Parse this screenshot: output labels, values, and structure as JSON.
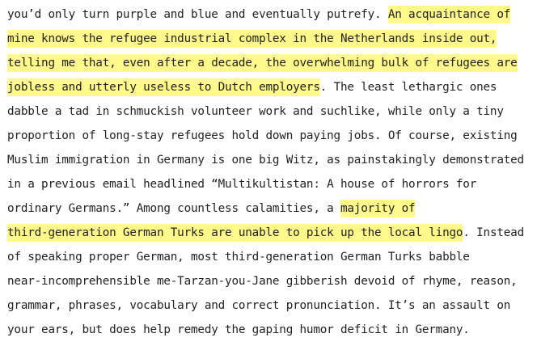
{
  "document": {
    "highlight_color": "#fff88a",
    "lines": [
      {
        "a": "you’d only turn purple and blue and eventually putrefy. ",
        "h": "An acquaintance of",
        "b": ""
      },
      {
        "a": "",
        "h": "mine knows the refugee industrial complex in the Netherlands inside out,",
        "b": ""
      },
      {
        "a": "",
        "h": "telling me that, even after a decade, the overwhelming bulk of refugees are",
        "b": ""
      },
      {
        "a": "",
        "h": "jobless and utterly useless to Dutch employers",
        "b": ". The least lethargic ones"
      },
      {
        "a": "dabble a tad in schmuckish volunteer work and suchlike, while only a tiny",
        "h": "",
        "b": ""
      },
      {
        "a": "proportion of long-stay refugees hold down paying jobs. Of course, existing",
        "h": "",
        "b": ""
      },
      {
        "a": "Muslim immigration in Germany is one big Witz, as painstakingly demonstrated",
        "h": "",
        "b": ""
      },
      {
        "a": "in a previous email headlined “Multikultistan: A house of horrors for",
        "h": "",
        "b": ""
      },
      {
        "a": "ordinary Germans.” Among countless calamities, a ",
        "h": "majority of",
        "b": ""
      },
      {
        "a": "",
        "h": "third-generation German Turks are unable to pick up the local lingo",
        "b": ". Instead"
      },
      {
        "a": "of speaking proper German, most third-generation German Turks babble",
        "h": "",
        "b": ""
      },
      {
        "a": "near-incomprehensible me-Tarzan-you-Jane gibberish devoid of rhyme, reason,",
        "h": "",
        "b": ""
      },
      {
        "a": "grammar, phrases, vocabulary and correct pronunciation. It’s an assault on",
        "h": "",
        "b": ""
      },
      {
        "a": "your ears, but does help remedy the gaping humor deficit in Germany.",
        "h": "",
        "b": ""
      }
    ]
  }
}
